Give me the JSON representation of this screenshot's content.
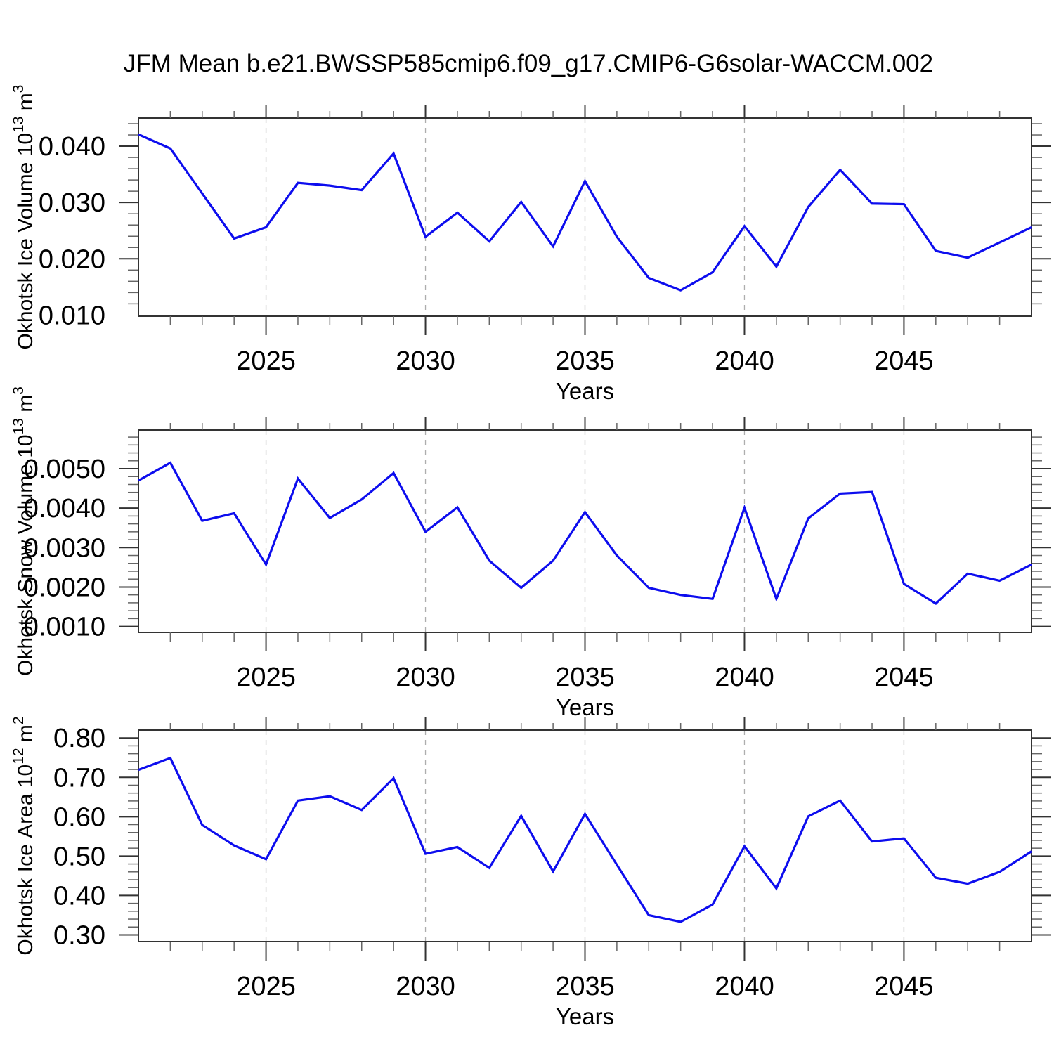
{
  "title": "JFM Mean b.e21.BWSSP585cmip6.f09_g17.CMIP6-G6solar-WACCM.002",
  "colors": {
    "line": "#0d0dee",
    "grid": "#adadad",
    "frame": "#333333",
    "minor_tick": "#666666",
    "text": "#000000",
    "background": "#ffffff"
  },
  "chart_data": {
    "type": "line",
    "x_label": "Years",
    "x": [
      2021,
      2022,
      2023,
      2024,
      2025,
      2026,
      2027,
      2028,
      2029,
      2030,
      2031,
      2032,
      2033,
      2034,
      2035,
      2036,
      2037,
      2038,
      2039,
      2040,
      2041,
      2042,
      2043,
      2044,
      2045,
      2046,
      2047,
      2048,
      2049
    ],
    "x_major_ticks": [
      2025,
      2030,
      2035,
      2040,
      2045
    ],
    "x_minor_step": 1,
    "xlim": [
      2021,
      2049
    ],
    "grid": "vertical-dashed-at-major-ticks",
    "legend": "none",
    "panels": [
      {
        "name": "Okhotsk Ice Volume",
        "ylabel": {
          "prefix": "Okhotsk Ice Volume 10",
          "exponent": "13",
          "unit": " m",
          "unit_exponent": "3"
        },
        "ylim": [
          0.0098,
          0.045
        ],
        "y_major_ticks": [
          0.01,
          0.02,
          0.03,
          0.04
        ],
        "y_major_labels": [
          "0.010",
          "0.020",
          "0.030",
          "0.040"
        ],
        "y_minor_step": 0.002,
        "values": [
          0.0421,
          0.0396,
          0.0316,
          0.0236,
          0.0256,
          0.0335,
          0.033,
          0.0322,
          0.0387,
          0.0239,
          0.0282,
          0.0231,
          0.0301,
          0.0222,
          0.0338,
          0.0239,
          0.0166,
          0.0144,
          0.0176,
          0.0258,
          0.0186,
          0.0292,
          0.0358,
          0.0298,
          0.0297,
          0.0214,
          0.0202,
          0.0229,
          0.0256
        ]
      },
      {
        "name": "Okhotsk Snow Volume",
        "ylabel": {
          "prefix": "Okhotsk Snow Volume 10",
          "exponent": "13",
          "unit": " m",
          "unit_exponent": "3"
        },
        "ylim": [
          0.00085,
          0.00598
        ],
        "y_major_ticks": [
          0.001,
          0.002,
          0.003,
          0.004,
          0.005
        ],
        "y_major_labels": [
          "0.0010",
          "0.0020",
          "0.0030",
          "0.0040",
          "0.0050"
        ],
        "y_minor_step": 0.0002,
        "values": [
          0.0047,
          0.00515,
          0.00368,
          0.00387,
          0.00257,
          0.00475,
          0.00375,
          0.00422,
          0.00489,
          0.0034,
          0.00402,
          0.00267,
          0.00198,
          0.00267,
          0.0039,
          0.0028,
          0.00198,
          0.0018,
          0.0017,
          0.00401,
          0.0017,
          0.00374,
          0.00437,
          0.00441,
          0.00208,
          0.00158,
          0.00234,
          0.00216,
          0.00257
        ]
      },
      {
        "name": "Okhotsk Ice Area",
        "ylabel": {
          "prefix": "Okhotsk Ice Area 10",
          "exponent": "12",
          "unit": " m",
          "unit_exponent": "2"
        },
        "ylim": [
          0.283,
          0.82
        ],
        "y_major_ticks": [
          0.3,
          0.4,
          0.5,
          0.6,
          0.7,
          0.8
        ],
        "y_major_labels": [
          "0.30",
          "0.40",
          "0.50",
          "0.60",
          "0.70",
          "0.80"
        ],
        "y_minor_step": 0.02,
        "values": [
          0.719,
          0.749,
          0.579,
          0.527,
          0.492,
          0.641,
          0.652,
          0.617,
          0.698,
          0.506,
          0.523,
          0.47,
          0.602,
          0.461,
          0.607,
          0.478,
          0.35,
          0.333,
          0.377,
          0.525,
          0.418,
          0.601,
          0.641,
          0.537,
          0.545,
          0.445,
          0.43,
          0.46,
          0.512
        ]
      }
    ]
  }
}
